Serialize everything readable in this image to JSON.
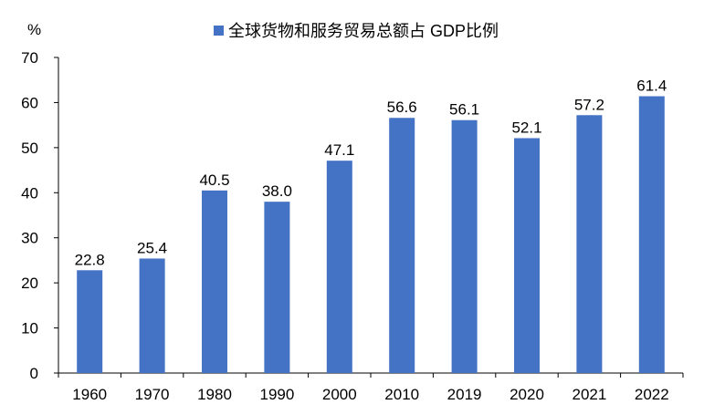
{
  "chart_data": {
    "type": "bar",
    "title": "",
    "xlabel": "",
    "ylabel": "%",
    "categories": [
      "1960",
      "1970",
      "1980",
      "1990",
      "2000",
      "2010",
      "2019",
      "2020",
      "2021",
      "2022"
    ],
    "series": [
      {
        "name": "全球货物和服务贸易总额占 GDP比例",
        "values": [
          22.8,
          25.4,
          40.5,
          38.0,
          47.1,
          56.6,
          56.1,
          52.1,
          57.2,
          61.4
        ],
        "labels": [
          "22.8",
          "25.4",
          "40.5",
          "38.0",
          "47.1",
          "56.6",
          "56.1",
          "52.1",
          "57.2",
          "61.4"
        ],
        "color": "#4472C4"
      }
    ],
    "ylim": [
      0,
      70
    ],
    "yticks": [
      0,
      10,
      20,
      30,
      40,
      50,
      60,
      70
    ],
    "ytick_labels": [
      "0",
      "10",
      "20",
      "30",
      "40",
      "50",
      "60",
      "70"
    ],
    "grid": false,
    "legend_position": "top-center",
    "axis_color": "#000000"
  }
}
